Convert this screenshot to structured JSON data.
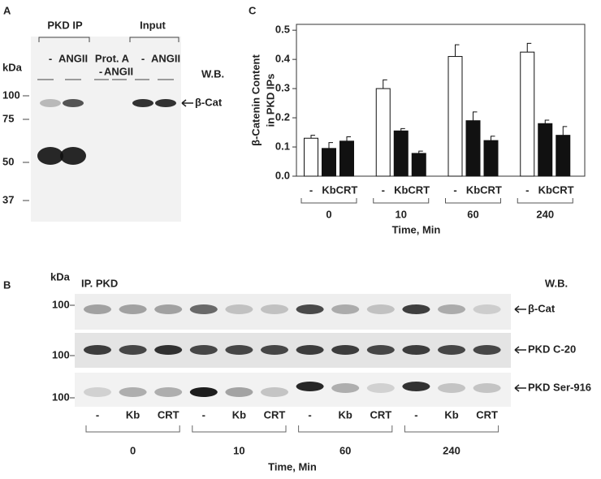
{
  "panels": [
    "A",
    "B",
    "C"
  ],
  "panel_a": {
    "groups": [
      "PKD IP",
      "Input"
    ],
    "lane_labels": [
      "-",
      "ANGII",
      "Prot. A",
      "-",
      "ANGII",
      "-",
      "ANGII"
    ],
    "kda": "kDa",
    "markers": [
      100,
      75,
      50,
      37
    ],
    "wb": "W.B.",
    "band": "β-Cat"
  },
  "panel_b": {
    "kda": "kDa",
    "ip": "IP. PKD",
    "wb": "W.B.",
    "rows": [
      {
        "marker": 100,
        "label": "β-Cat"
      },
      {
        "marker": 100,
        "label": "PKD C-20"
      },
      {
        "marker": 100,
        "label": "PKD Ser-916"
      }
    ],
    "lanes": [
      "-",
      "Kb",
      "CRT",
      "-",
      "Kb",
      "CRT",
      "-",
      "Kb",
      "CRT",
      "-",
      "Kb",
      "CRT"
    ],
    "times": [
      "0",
      "10",
      "60",
      "240"
    ],
    "xlabel": "Time, Min"
  },
  "chart_data": {
    "type": "bar",
    "ylabel": [
      "β-Catenin Content",
      "in PKD IPs"
    ],
    "xlabel": "Time, Min",
    "categories": [
      "-",
      "Kb",
      "CRT",
      "-",
      "Kb",
      "CRT",
      "-",
      "Kb",
      "CRT",
      "-",
      "Kb",
      "CRT"
    ],
    "groups": [
      "0",
      "10",
      "60",
      "240"
    ],
    "values": [
      0.13,
      0.095,
      0.12,
      0.3,
      0.155,
      0.078,
      0.41,
      0.19,
      0.122,
      0.425,
      0.18,
      0.14
    ],
    "errors": [
      0.01,
      0.02,
      0.015,
      0.03,
      0.008,
      0.008,
      0.04,
      0.03,
      0.015,
      0.03,
      0.012,
      0.03
    ],
    "colors": [
      "#ffffff",
      "#111111",
      "#111111",
      "#ffffff",
      "#111111",
      "#111111",
      "#ffffff",
      "#111111",
      "#111111",
      "#ffffff",
      "#111111",
      "#111111"
    ],
    "ylim": [
      0,
      0.52
    ],
    "yticks": [
      {
        "value": 0,
        "label": "0.0"
      },
      0.1,
      0.2,
      0.3,
      0.4,
      0.5
    ]
  }
}
